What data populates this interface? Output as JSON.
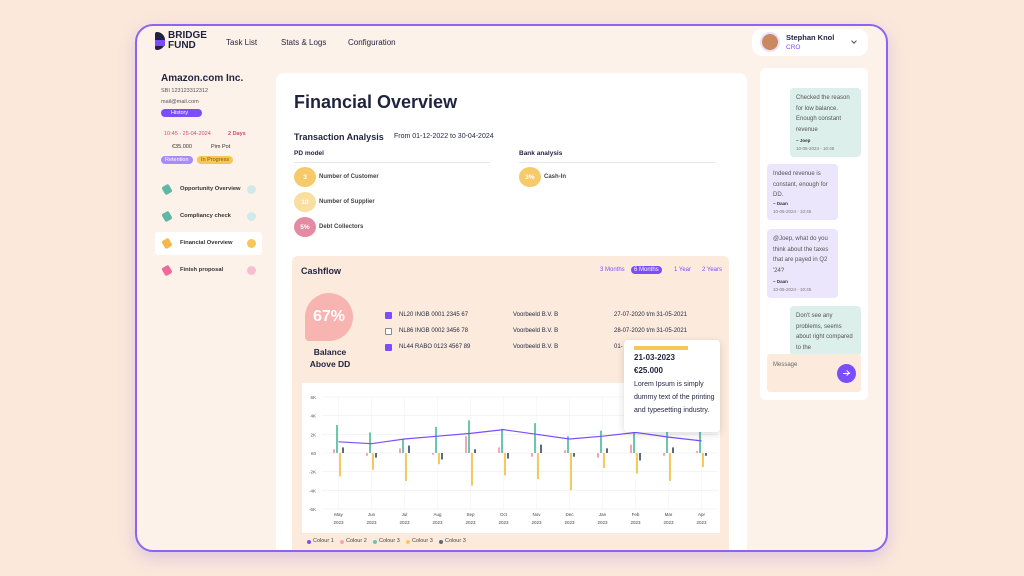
{
  "header": {
    "logo": [
      "BRIDGE",
      "FUND"
    ],
    "nav": [
      "Task List",
      "Stats & Logs",
      "Configuration"
    ],
    "user": {
      "name": "Stephan Knol",
      "role": "CRO"
    }
  },
  "sidebar": {
    "company": "Amazon.com Inc.",
    "sbi": "SBI 123123312312",
    "email": "mail@mail.com",
    "history": "History",
    "time": "10:45 - 25-04-2024",
    "days": "2 Days",
    "amount": "€35.000",
    "person": "Pim Pot",
    "tags": [
      "Retention",
      "In Progress"
    ],
    "steps": [
      {
        "label": "Opportunity Overview",
        "color": "#5fb8a6",
        "status": "#cfeaea"
      },
      {
        "label": "Compliancy check",
        "color": "#5fb8a6",
        "status": "#cfeaea"
      },
      {
        "label": "Financial Overview",
        "color": "#f2b84b",
        "status": "#f6c656",
        "active": true
      },
      {
        "label": "Finish proposal",
        "color": "#ee6a9a",
        "status": "#f8bfd3"
      }
    ]
  },
  "main": {
    "title": "Financial Overview",
    "analysis": {
      "title": "Transaction Analysis",
      "period": "From 01-12-2022 to 30-04-2024"
    },
    "pd_model": {
      "title": "PD model",
      "items": [
        {
          "value": "3",
          "label": "Number of Customer",
          "color": "#f6c96a"
        },
        {
          "value": "10",
          "label": "Number of Supplier",
          "color": "#f8dfa0"
        },
        {
          "value": "5%",
          "label": "Debt Collectors",
          "color": "#e58aa2"
        }
      ]
    },
    "bank": {
      "title": "Bank analysis",
      "items": [
        {
          "value": "3%",
          "label": "Cash-In",
          "color": "#f6c96a"
        }
      ]
    }
  },
  "cashflow": {
    "title": "Cashflow",
    "ranges": [
      {
        "label": "3 Months"
      },
      {
        "label": "6 Months",
        "active": true
      },
      {
        "label": "1 Year"
      },
      {
        "label": "2 Years"
      }
    ],
    "gauge": {
      "value": "67%",
      "label": "Balance Above DD"
    },
    "accounts": [
      {
        "checked": true,
        "iban": "NL20 INGB 0001 2345 67",
        "name": "Voorbeeld B.V. B",
        "period": "27-07-2020 t/m 31-05-2021"
      },
      {
        "checked": false,
        "iban": "NL86 INGB 0002 3456 78",
        "name": "Voorbeeld B.V. B",
        "period": "28-07-2020 t/m 31-05-2021"
      },
      {
        "checked": true,
        "iban": "NL44 RABO 0123 4567 89",
        "name": "Voorbeeld B.V. B",
        "period": "01-"
      }
    ],
    "tooltip": {
      "date": "21-03-2023",
      "amount": "€25.000",
      "text": "Lorem Ipsum is simply dummy text of the printing and typesetting industry."
    }
  },
  "chart_data": {
    "type": "bar",
    "categories": [
      "May 2023",
      "Jun 2023",
      "Jul 2023",
      "Aug 2023",
      "Sep 2023",
      "Oct 2023",
      "Nov 2023",
      "Dec 2023",
      "Jan 2023",
      "Feb 2023",
      "Mar 2023",
      "Apr 2023"
    ],
    "ylim": [
      -6000,
      6000
    ],
    "yticks": [
      {
        "value": -6000,
        "label": "-6K"
      },
      {
        "value": -4000,
        "label": "-4K"
      },
      {
        "value": -2000,
        "label": "-2K"
      },
      {
        "value": 0,
        "label": "€0"
      },
      {
        "value": 2000,
        "label": "2K"
      },
      {
        "value": 4000,
        "label": "4K"
      },
      {
        "value": 6000,
        "label": "6K"
      }
    ],
    "grid": true,
    "series": [
      {
        "name": "Colour 1",
        "color": "#7c4dff",
        "type": "line",
        "values": [
          1200,
          1000,
          1500,
          1800,
          2100,
          2500,
          2000,
          1500,
          1800,
          2200,
          1700,
          1300
        ]
      },
      {
        "name": "Colour 2",
        "color": "#f4a7b3",
        "values": [
          400,
          -300,
          500,
          -200,
          1800,
          600,
          -400,
          300,
          -500,
          900,
          -300,
          200
        ]
      },
      {
        "name": "Colour 3",
        "color": "#6cc6b2",
        "values": [
          3000,
          2200,
          1500,
          2800,
          3500,
          2600,
          3200,
          1800,
          2400,
          3800,
          4200,
          2500
        ]
      },
      {
        "name": "Colour 3",
        "color": "#f5c95c",
        "values": [
          -2500,
          -1800,
          -3000,
          -1200,
          -3500,
          -2400,
          -2800,
          -4000,
          -1600,
          -2200,
          -3000,
          -1500
        ]
      },
      {
        "name": "Colour 3",
        "color": "#5b6b7a",
        "values": [
          600,
          -500,
          800,
          -700,
          400,
          -600,
          900,
          -400,
          500,
          -800,
          600,
          -300
        ]
      }
    ]
  },
  "chat": {
    "messages": [
      {
        "text": "Checked the reason for low balance. Enough constant revenue",
        "author": "~ Joep",
        "date": "10-05-2024 - 10:45",
        "side": "right"
      },
      {
        "text": "Indeed revenue is constant, enough for DD.",
        "author": "~ Daan",
        "date": "10-05-2024 - 10:45",
        "side": "left"
      },
      {
        "text": "@Joep, what do you think about the taxes that are payed in Q2 '24?",
        "author": "~ Daan",
        "date": "10-05-2024 - 10:45",
        "side": "left"
      },
      {
        "text": "Don't see any problems, seems about right compared to the",
        "side": "right"
      }
    ],
    "placeholder": "Message"
  }
}
